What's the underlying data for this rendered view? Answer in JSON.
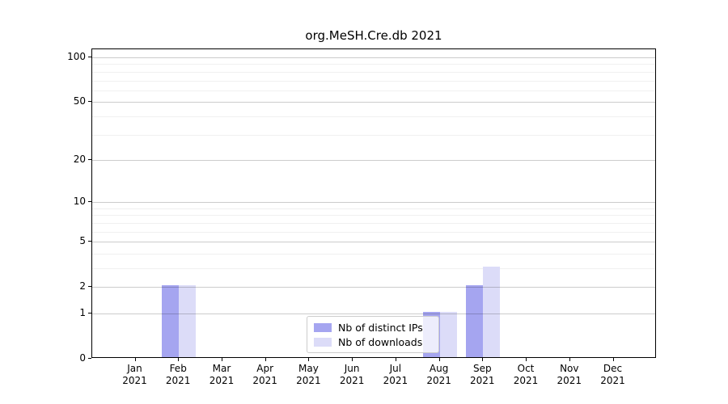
{
  "chart_data": {
    "type": "bar",
    "title": "org.MeSH.Cre.db 2021",
    "categories": [
      "Jan 2021",
      "Feb 2021",
      "Mar 2021",
      "Apr 2021",
      "May 2021",
      "Jun 2021",
      "Jul 2021",
      "Aug 2021",
      "Sep 2021",
      "Oct 2021",
      "Nov 2021",
      "Dec 2021"
    ],
    "series": [
      {
        "name": "Nb of distinct IPs",
        "color": "#a5a5f0",
        "values": [
          0,
          2,
          0,
          0,
          0,
          0,
          0,
          1,
          2,
          0,
          0,
          0
        ]
      },
      {
        "name": "Nb of downloads",
        "color": "#dcdcf8",
        "values": [
          0,
          2,
          0,
          0,
          0,
          0,
          0,
          1,
          3,
          0,
          0,
          0
        ]
      }
    ],
    "yscale": "log1p",
    "yticks": [
      0,
      1,
      2,
      5,
      10,
      20,
      50,
      100
    ],
    "minor_gridlines": [
      3,
      4,
      6,
      7,
      8,
      9,
      30,
      40,
      60,
      70,
      80,
      90
    ],
    "ylim": [
      0,
      115
    ],
    "xlabel": "",
    "ylabel": "",
    "grid": true,
    "legend_position": "lower center",
    "colors": {
      "axis": "#000000",
      "major_grid": "#c8c8c8",
      "minor_grid": "#ededed",
      "background": "#ffffff"
    }
  }
}
